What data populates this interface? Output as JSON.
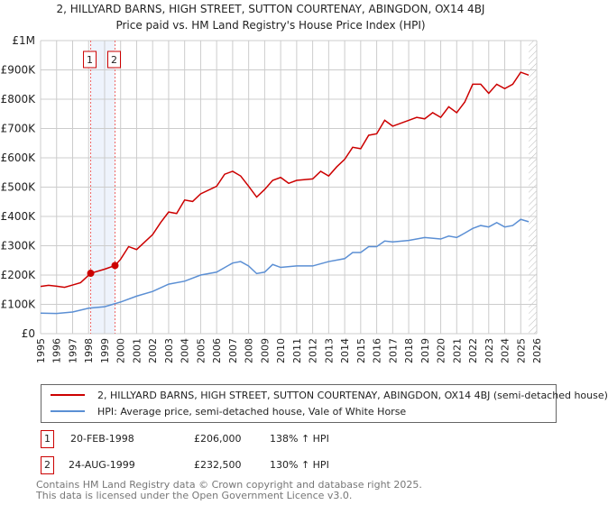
{
  "title": {
    "line1": "2, HILLYARD BARNS, HIGH STREET, SUTTON COURTENAY, ABINGDON, OX14 4BJ",
    "line2": "Price paid vs. HM Land Registry's House Price Index (HPI)"
  },
  "legend": {
    "property": "2, HILLYARD BARNS, HIGH STREET, SUTTON COURTENAY, ABINGDON, OX14 4BJ (semi-detached house)",
    "hpi": "HPI: Average price, semi-detached house, Vale of White Horse"
  },
  "sales": [
    {
      "num": "1",
      "date": "20-FEB-1998",
      "price": "£206,000",
      "hpi": "138% ↑ HPI"
    },
    {
      "num": "2",
      "date": "24-AUG-1999",
      "price": "£232,500",
      "hpi": "130% ↑ HPI"
    }
  ],
  "footer": {
    "line1": "Contains HM Land Registry data © Crown copyright and database right 2025.",
    "line2": "This data is licensed under the Open Government Licence v3.0."
  },
  "colors": {
    "property": "#cc0000",
    "hpi": "#5b8fd4",
    "grid": "#cccccc",
    "band": "#eef3fc"
  },
  "chart_data": {
    "type": "line",
    "xlim": [
      1995,
      2026
    ],
    "ylim": [
      0,
      1000000
    ],
    "yticks": [
      {
        "v": 0,
        "label": "£0"
      },
      {
        "v": 100000,
        "label": "£100K"
      },
      {
        "v": 200000,
        "label": "£200K"
      },
      {
        "v": 300000,
        "label": "£300K"
      },
      {
        "v": 400000,
        "label": "£400K"
      },
      {
        "v": 500000,
        "label": "£500K"
      },
      {
        "v": 600000,
        "label": "£600K"
      },
      {
        "v": 700000,
        "label": "£700K"
      },
      {
        "v": 800000,
        "label": "£800K"
      },
      {
        "v": 900000,
        "label": "£900K"
      },
      {
        "v": 1000000,
        "label": "£1M"
      }
    ],
    "xticks": [
      "1995",
      "1996",
      "1997",
      "1998",
      "1999",
      "2000",
      "2001",
      "2002",
      "2003",
      "2004",
      "2005",
      "2006",
      "2007",
      "2008",
      "2009",
      "2010",
      "2011",
      "2012",
      "2013",
      "2014",
      "2015",
      "2016",
      "2017",
      "2018",
      "2019",
      "2020",
      "2021",
      "2022",
      "2023",
      "2024",
      "2025",
      "2026"
    ],
    "sale_markers": [
      {
        "label": "1",
        "x": 1998.13,
        "y": 206000
      },
      {
        "label": "2",
        "x": 1999.65,
        "y": 232500
      }
    ],
    "forecast_hatch_from": 2025.5,
    "series": [
      {
        "name": "property",
        "x": [
          1995,
          1995.5,
          1996,
          1996.5,
          1997,
          1997.5,
          1998.13,
          1999,
          1999.65,
          2000,
          2000.5,
          2001,
          2002,
          2002.5,
          2003,
          2003.5,
          2004,
          2004.5,
          2005,
          2006,
          2006.5,
          2007,
          2007.5,
          2008,
          2008.5,
          2009,
          2009.5,
          2010,
          2010.5,
          2011,
          2012,
          2012.5,
          2013,
          2013.5,
          2014,
          2014.5,
          2015,
          2015.5,
          2016,
          2016.5,
          2017,
          2018,
          2018.5,
          2019,
          2019.5,
          2020,
          2020.5,
          2021,
          2021.5,
          2022,
          2022.5,
          2023,
          2023.5,
          2024,
          2024.5,
          2025,
          2025.5
        ],
        "y": [
          161000,
          165000,
          162000,
          158000,
          166000,
          174000,
          206000,
          220000,
          232500,
          254000,
          297000,
          287000,
          338000,
          379000,
          415000,
          410000,
          456000,
          451000,
          477000,
          503000,
          544000,
          554000,
          538000,
          503000,
          466000,
          492000,
          523000,
          533000,
          513000,
          523000,
          528000,
          554000,
          538000,
          569000,
          595000,
          636000,
          631000,
          677000,
          682000,
          728000,
          708000,
          728000,
          738000,
          733000,
          754000,
          738000,
          774000,
          754000,
          790000,
          851000,
          851000,
          820000,
          851000,
          836000,
          851000,
          892000,
          882000
        ]
      },
      {
        "name": "hpi",
        "x": [
          1995,
          1996,
          1997,
          1998,
          1999,
          2000,
          2001,
          2002,
          2003,
          2004,
          2005,
          2006,
          2007,
          2007.5,
          2008,
          2008.5,
          2009,
          2009.5,
          2010,
          2011,
          2012,
          2013,
          2014,
          2014.5,
          2015,
          2015.5,
          2016,
          2016.5,
          2017,
          2018,
          2019,
          2020,
          2020.5,
          2021,
          2021.5,
          2022,
          2022.5,
          2023,
          2023.5,
          2024,
          2024.5,
          2025,
          2025.5
        ],
        "y": [
          70000,
          69000,
          74000,
          87000,
          92000,
          108000,
          128000,
          144000,
          169000,
          179000,
          200000,
          210000,
          241000,
          246000,
          231000,
          205000,
          210000,
          236000,
          226000,
          231000,
          231000,
          246000,
          256000,
          277000,
          277000,
          297000,
          297000,
          316000,
          313000,
          318000,
          328000,
          323000,
          333000,
          328000,
          343000,
          359000,
          369000,
          364000,
          379000,
          364000,
          369000,
          390000,
          382000
        ]
      }
    ]
  }
}
